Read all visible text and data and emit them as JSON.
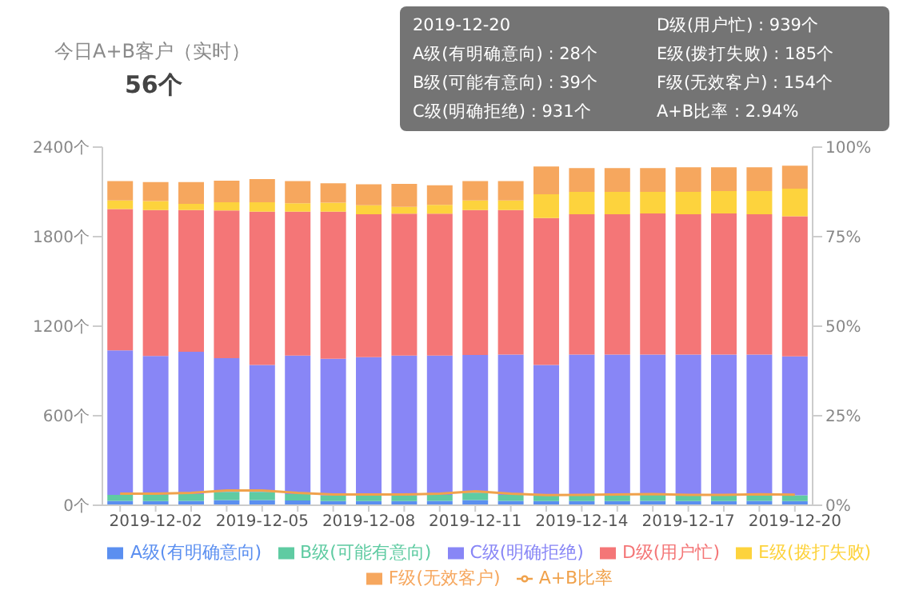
{
  "chart_data": {
    "type": "bar",
    "title": "今日A+B客户（实时）",
    "subtitle": "56个",
    "stacked": true,
    "categories": [
      null,
      "2019-12-02",
      null,
      null,
      "2019-12-05",
      null,
      null,
      "2019-12-08",
      null,
      null,
      "2019-12-11",
      null,
      null,
      "2019-12-14",
      null,
      null,
      "2019-12-17",
      null,
      null,
      "2019-12-20"
    ],
    "series": [
      {
        "name": "A级(有明确意向)",
        "color": "#5b8ff0",
        "values": [
          30,
          28,
          30,
          35,
          35,
          32,
          28,
          28,
          28,
          30,
          35,
          30,
          28,
          28,
          28,
          30,
          28,
          28,
          30,
          28
        ]
      },
      {
        "name": "B级(可能有意向)",
        "color": "#5fcba2",
        "values": [
          40,
          42,
          45,
          55,
          55,
          43,
          37,
          37,
          37,
          40,
          50,
          40,
          37,
          37,
          40,
          40,
          38,
          38,
          40,
          39
        ]
      },
      {
        "name": "C级(明确拒绝)",
        "color": "#8886f6",
        "values": [
          968,
          930,
          953,
          896,
          850,
          928,
          917,
          928,
          938,
          933,
          922,
          940,
          875,
          945,
          942,
          940,
          944,
          944,
          940,
          931
        ]
      },
      {
        "name": "D级(用户忙)",
        "color": "#f47677",
        "values": [
          947,
          978,
          950,
          989,
          1028,
          965,
          986,
          957,
          951,
          951,
          971,
          968,
          985,
          940,
          940,
          945,
          940,
          945,
          940,
          939
        ]
      },
      {
        "name": "E级(拨打失败)",
        "color": "#fdd33d",
        "values": [
          57,
          60,
          42,
          56,
          63,
          56,
          60,
          60,
          46,
          59,
          64,
          64,
          159,
          150,
          150,
          145,
          150,
          150,
          155,
          185
        ]
      },
      {
        "name": "F级(无效客户)",
        "color": "#f6a75e",
        "values": [
          130,
          127,
          145,
          144,
          155,
          148,
          130,
          141,
          154,
          131,
          130,
          130,
          186,
          160,
          160,
          160,
          165,
          160,
          160,
          154
        ]
      },
      {
        "name": "A+B比率",
        "type": "line",
        "axis": "y2",
        "color": "#f0a24c",
        "values": [
          3.22,
          3.23,
          3.46,
          4.14,
          4.12,
          3.45,
          3.01,
          3.02,
          3.02,
          3.26,
          3.91,
          3.22,
          2.86,
          2.88,
          3.01,
          3.1,
          2.91,
          2.91,
          3.09,
          2.94
        ]
      }
    ],
    "ylim": [
      0,
      2400
    ],
    "yticks": [
      {
        "value": 0,
        "label": "0个"
      },
      {
        "value": 600,
        "label": "600个"
      },
      {
        "value": 1200,
        "label": "1200个"
      },
      {
        "value": 1800,
        "label": "1800个"
      },
      {
        "value": 2400,
        "label": "2400个"
      }
    ],
    "y2lim": [
      0,
      100
    ],
    "y2ticks": [
      {
        "value": 0,
        "label": "0%"
      },
      {
        "value": 25,
        "label": "25%"
      },
      {
        "value": 50,
        "label": "50%"
      },
      {
        "value": 75,
        "label": "75%"
      },
      {
        "value": 100,
        "label": "100%"
      }
    ],
    "grid": false,
    "legend": "bottom",
    "marker": "none",
    "annotations": [
      "2019-12-20",
      "A级(有明确意向) : 28个",
      "B级(可能有意向) : 39个",
      "C级(明确拒绝) : 931个",
      "D级(用户忙) : 939个",
      "E级(拨打失败) : 185个",
      "F级(无效客户) : 154个",
      "A+B比率 : 2.94%"
    ]
  }
}
